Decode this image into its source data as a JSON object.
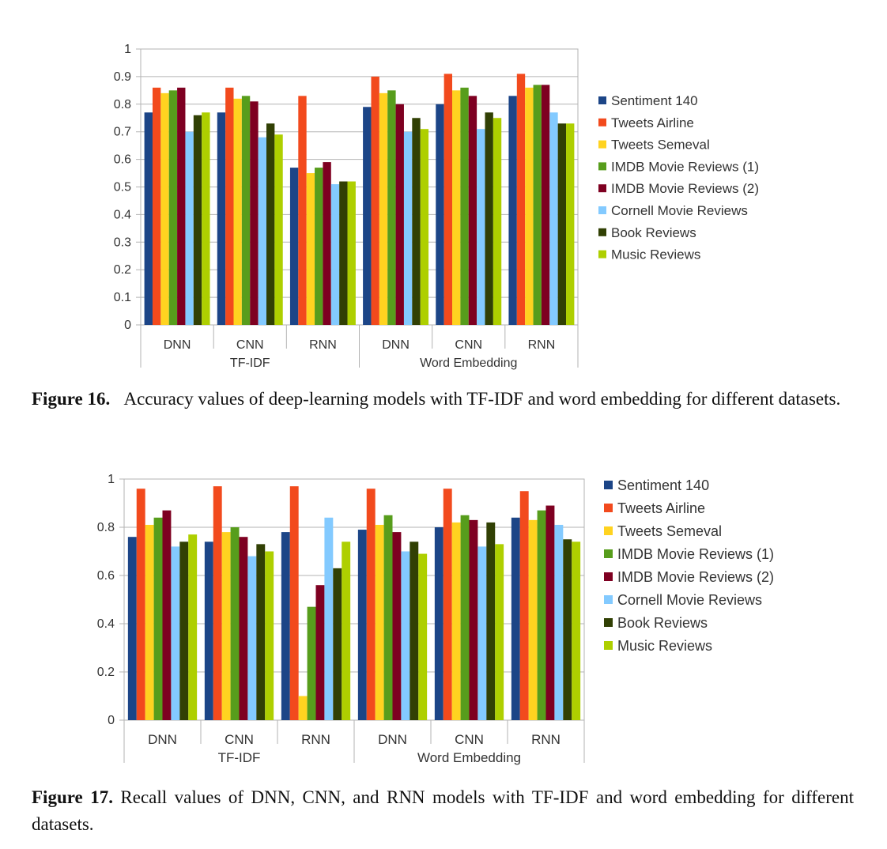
{
  "figures": [
    {
      "caption_label": "Figure 16.",
      "caption_text": "Accuracy values of deep-learning models with TF-IDF and word embedding for different datasets."
    },
    {
      "caption_label": "Figure 17.",
      "caption_text": "Recall values of DNN, CNN, and RNN models with TF-IDF and word embedding for different datasets."
    }
  ],
  "chart_data": [
    {
      "type": "bar",
      "title": "",
      "xlabel": "",
      "ylabel": "",
      "ylim": [
        0,
        1
      ],
      "yticks": [
        "0",
        "0.1",
        "0.2",
        "0.3",
        "0.4",
        "0.5",
        "0.6",
        "0.7",
        "0.8",
        "0.9",
        "1"
      ],
      "ytick_values": [
        0,
        0.1,
        0.2,
        0.3,
        0.4,
        0.5,
        0.6,
        0.7,
        0.8,
        0.9,
        1
      ],
      "grid": true,
      "legend_position": "right",
      "categories": [
        "DNN",
        "CNN",
        "RNN",
        "DNN",
        "CNN",
        "RNN"
      ],
      "groups": [
        {
          "label": "TF-IDF",
          "span": 3
        },
        {
          "label": "Word Embedding",
          "span": 3
        }
      ],
      "series": [
        {
          "name": "Sentiment 140",
          "color": "#1c4587",
          "values": [
            0.77,
            0.77,
            0.57,
            0.79,
            0.8,
            0.83
          ]
        },
        {
          "name": "Tweets Airline",
          "color": "#f24a1d",
          "values": [
            0.86,
            0.86,
            0.83,
            0.9,
            0.91,
            0.91
          ]
        },
        {
          "name": "Tweets Semeval",
          "color": "#ffd320",
          "values": [
            0.84,
            0.82,
            0.55,
            0.84,
            0.85,
            0.86
          ]
        },
        {
          "name": "IMDB Movie Reviews (1)",
          "color": "#579d1c",
          "values": [
            0.85,
            0.83,
            0.57,
            0.85,
            0.86,
            0.87
          ]
        },
        {
          "name": "IMDB Movie Reviews (2)",
          "color": "#7e0021",
          "values": [
            0.86,
            0.81,
            0.59,
            0.8,
            0.83,
            0.87
          ]
        },
        {
          "name": "Cornell Movie Reviews",
          "color": "#83caff",
          "values": [
            0.7,
            0.68,
            0.51,
            0.7,
            0.71,
            0.77
          ]
        },
        {
          "name": "Book Reviews",
          "color": "#314004",
          "values": [
            0.76,
            0.73,
            0.52,
            0.75,
            0.77,
            0.73
          ]
        },
        {
          "name": "Music Reviews",
          "color": "#aecf00",
          "values": [
            0.77,
            0.69,
            0.52,
            0.71,
            0.75,
            0.73
          ]
        }
      ]
    },
    {
      "type": "bar",
      "title": "",
      "xlabel": "",
      "ylabel": "",
      "ylim": [
        0,
        1
      ],
      "yticks": [
        "0",
        "0.2",
        "0.4",
        "0.6",
        "0.8",
        "1"
      ],
      "ytick_values": [
        0,
        0.2,
        0.4,
        0.6,
        0.8,
        1
      ],
      "grid": true,
      "legend_position": "right",
      "categories": [
        "DNN",
        "CNN",
        "RNN",
        "DNN",
        "CNN",
        "RNN"
      ],
      "groups": [
        {
          "label": "TF-IDF",
          "span": 3
        },
        {
          "label": "Word Embedding",
          "span": 3
        }
      ],
      "series": [
        {
          "name": "Sentiment 140",
          "color": "#1c4587",
          "values": [
            0.76,
            0.74,
            0.78,
            0.79,
            0.8,
            0.84
          ]
        },
        {
          "name": "Tweets Airline",
          "color": "#f24a1d",
          "values": [
            0.96,
            0.97,
            0.97,
            0.96,
            0.96,
            0.95
          ]
        },
        {
          "name": "Tweets Semeval",
          "color": "#ffd320",
          "values": [
            0.81,
            0.78,
            0.1,
            0.81,
            0.82,
            0.83
          ]
        },
        {
          "name": "IMDB Movie Reviews (1)",
          "color": "#579d1c",
          "values": [
            0.84,
            0.8,
            0.47,
            0.85,
            0.85,
            0.87
          ]
        },
        {
          "name": "IMDB Movie Reviews (2)",
          "color": "#7e0021",
          "values": [
            0.87,
            0.76,
            0.56,
            0.78,
            0.83,
            0.89
          ]
        },
        {
          "name": "Cornell Movie Reviews",
          "color": "#83caff",
          "values": [
            0.72,
            0.68,
            0.84,
            0.7,
            0.72,
            0.81
          ]
        },
        {
          "name": "Book Reviews",
          "color": "#314004",
          "values": [
            0.74,
            0.73,
            0.63,
            0.74,
            0.82,
            0.75
          ]
        },
        {
          "name": "Music Reviews",
          "color": "#aecf00",
          "values": [
            0.77,
            0.7,
            0.74,
            0.69,
            0.73,
            0.74
          ]
        }
      ]
    }
  ]
}
